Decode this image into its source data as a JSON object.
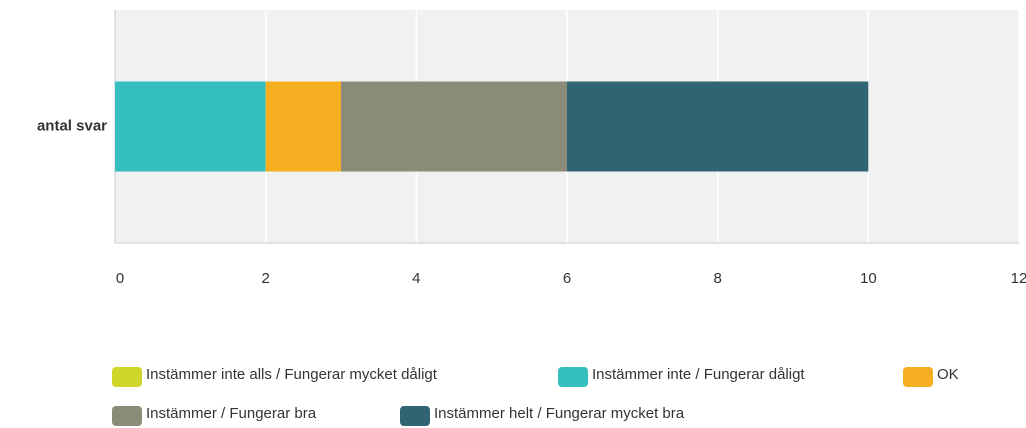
{
  "chart_data": {
    "type": "stacked-bar-horizontal",
    "categories": [
      "antal svar"
    ],
    "series": [
      {
        "name": "Instämmer inte alls / Fungerar mycket dåligt",
        "color": "#d0d52b",
        "values": [
          0
        ]
      },
      {
        "name": "Instämmer inte / Fungerar dåligt",
        "color": "#35bfbf",
        "values": [
          2
        ]
      },
      {
        "name": "OK",
        "color": "#f7af22",
        "values": [
          1
        ]
      },
      {
        "name": "Instämmer / Fungerar bra",
        "color": "#8b8b79",
        "values": [
          3
        ]
      },
      {
        "name": "Instämmer helt / Fungerar mycket bra",
        "color": "#306472",
        "values": [
          4
        ]
      }
    ],
    "xlim": [
      0,
      12
    ],
    "xticks": [
      0,
      2,
      4,
      6,
      8,
      10,
      12
    ],
    "grid": true,
    "legend": "bottom"
  }
}
